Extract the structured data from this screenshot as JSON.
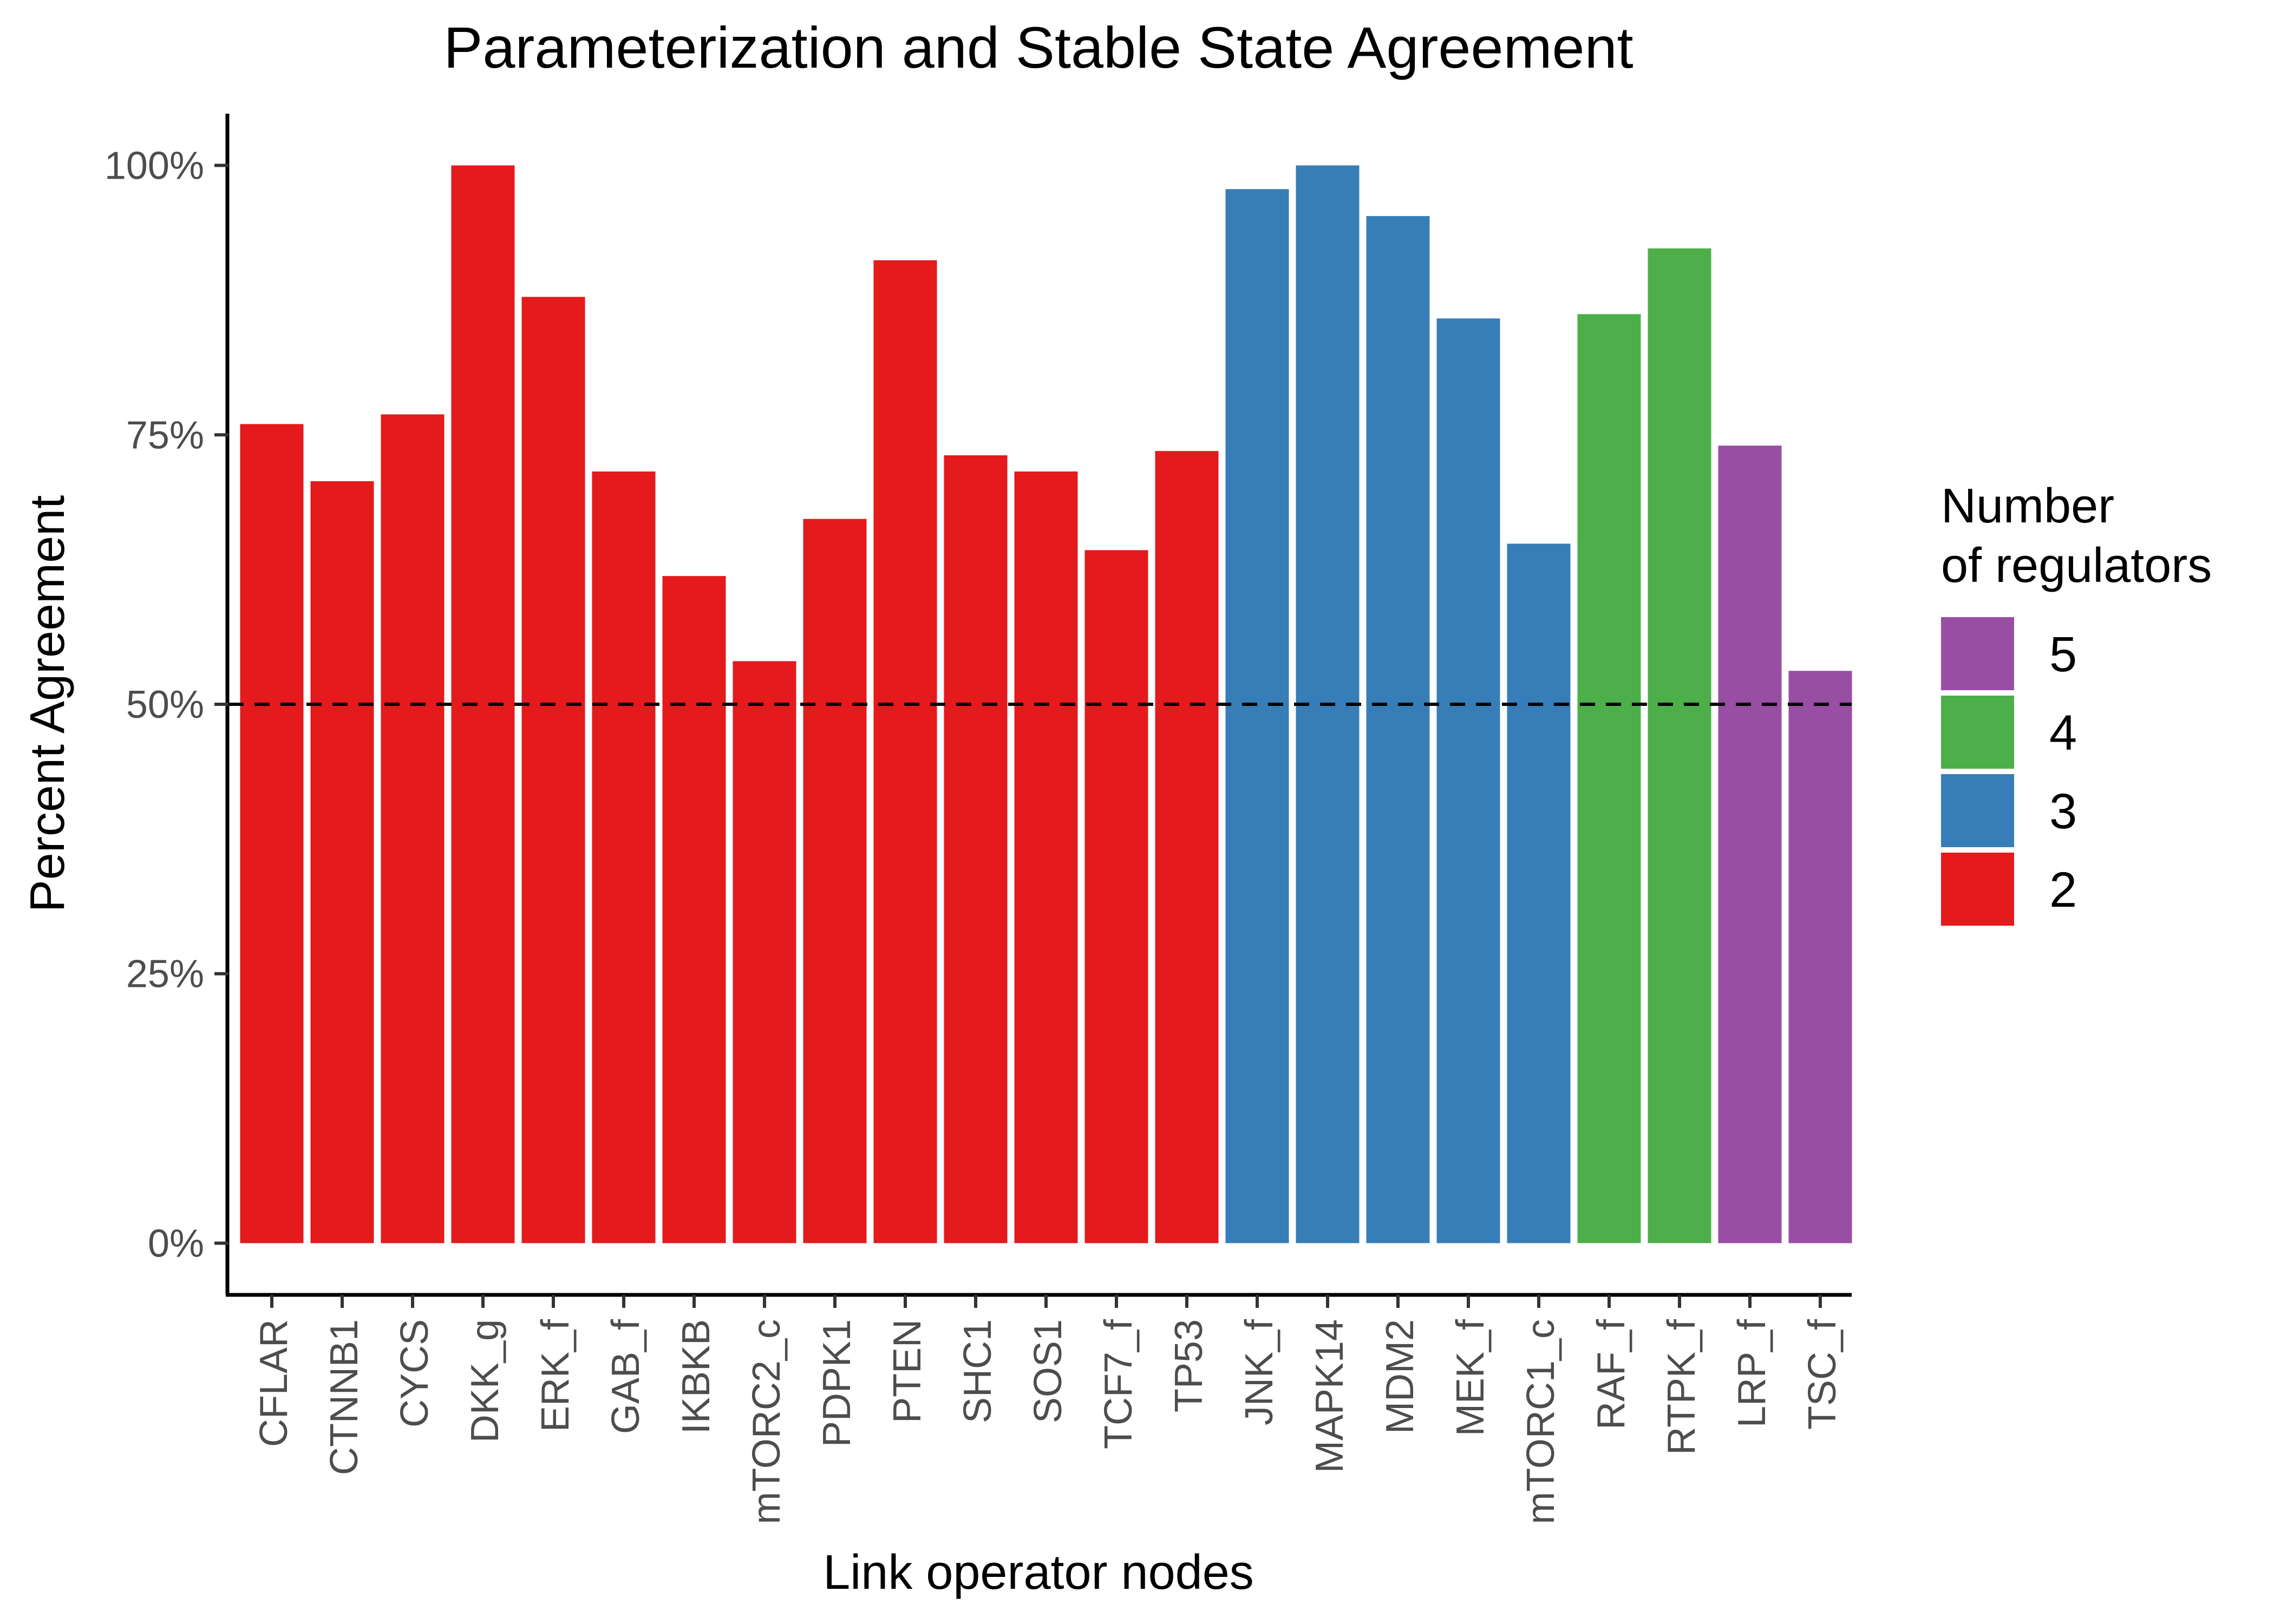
{
  "chart_data": {
    "type": "bar",
    "title": "Parameterization and Stable State Agreement",
    "xlabel": "Link operator nodes",
    "ylabel": "Percent Agreement",
    "ylim": [
      -0.048,
      1.048
    ],
    "yticks": [
      {
        "value": 0,
        "label": "0%"
      },
      {
        "value": 0.25,
        "label": "25%"
      },
      {
        "value": 0.5,
        "label": "50%"
      },
      {
        "value": 0.75,
        "label": "75%"
      },
      {
        "value": 1.0,
        "label": "100%"
      }
    ],
    "reference_line": {
      "value": 0.5,
      "style": "dashed",
      "color": "#000000"
    },
    "grid": false,
    "categories": [
      "CFLAR",
      "CTNNB1",
      "CYCS",
      "DKK_g",
      "ERK_f",
      "GAB_f",
      "IKBKB",
      "mTORC2_c",
      "PDPK1",
      "PTEN",
      "SHC1",
      "SOS1",
      "TCF7_f",
      "TP53",
      "JNK_f",
      "MAPK14",
      "MDM2",
      "MEK_f",
      "mTORC1_c",
      "RAF_f",
      "RTPK_f",
      "LRP_f",
      "TSC_f"
    ],
    "values": [
      0.76,
      0.707,
      0.769,
      1.0,
      0.878,
      0.716,
      0.619,
      0.54,
      0.672,
      0.912,
      0.731,
      0.716,
      0.643,
      0.735,
      0.978,
      1.0,
      0.953,
      0.858,
      0.649,
      0.862,
      0.923,
      0.74,
      0.531
    ],
    "groups": [
      2,
      2,
      2,
      2,
      2,
      2,
      2,
      2,
      2,
      2,
      2,
      2,
      2,
      2,
      3,
      3,
      3,
      3,
      3,
      4,
      4,
      5,
      5
    ],
    "legend": {
      "title_lines": [
        "Number",
        "of regulators"
      ],
      "placement": "right",
      "entries": [
        {
          "label": "5",
          "group": 5,
          "color": "#984EA3"
        },
        {
          "label": "4",
          "group": 4,
          "color": "#4DAF4A"
        },
        {
          "label": "3",
          "group": 3,
          "color": "#377EB8"
        },
        {
          "label": "2",
          "group": 2,
          "color": "#E41A1C"
        }
      ]
    }
  }
}
